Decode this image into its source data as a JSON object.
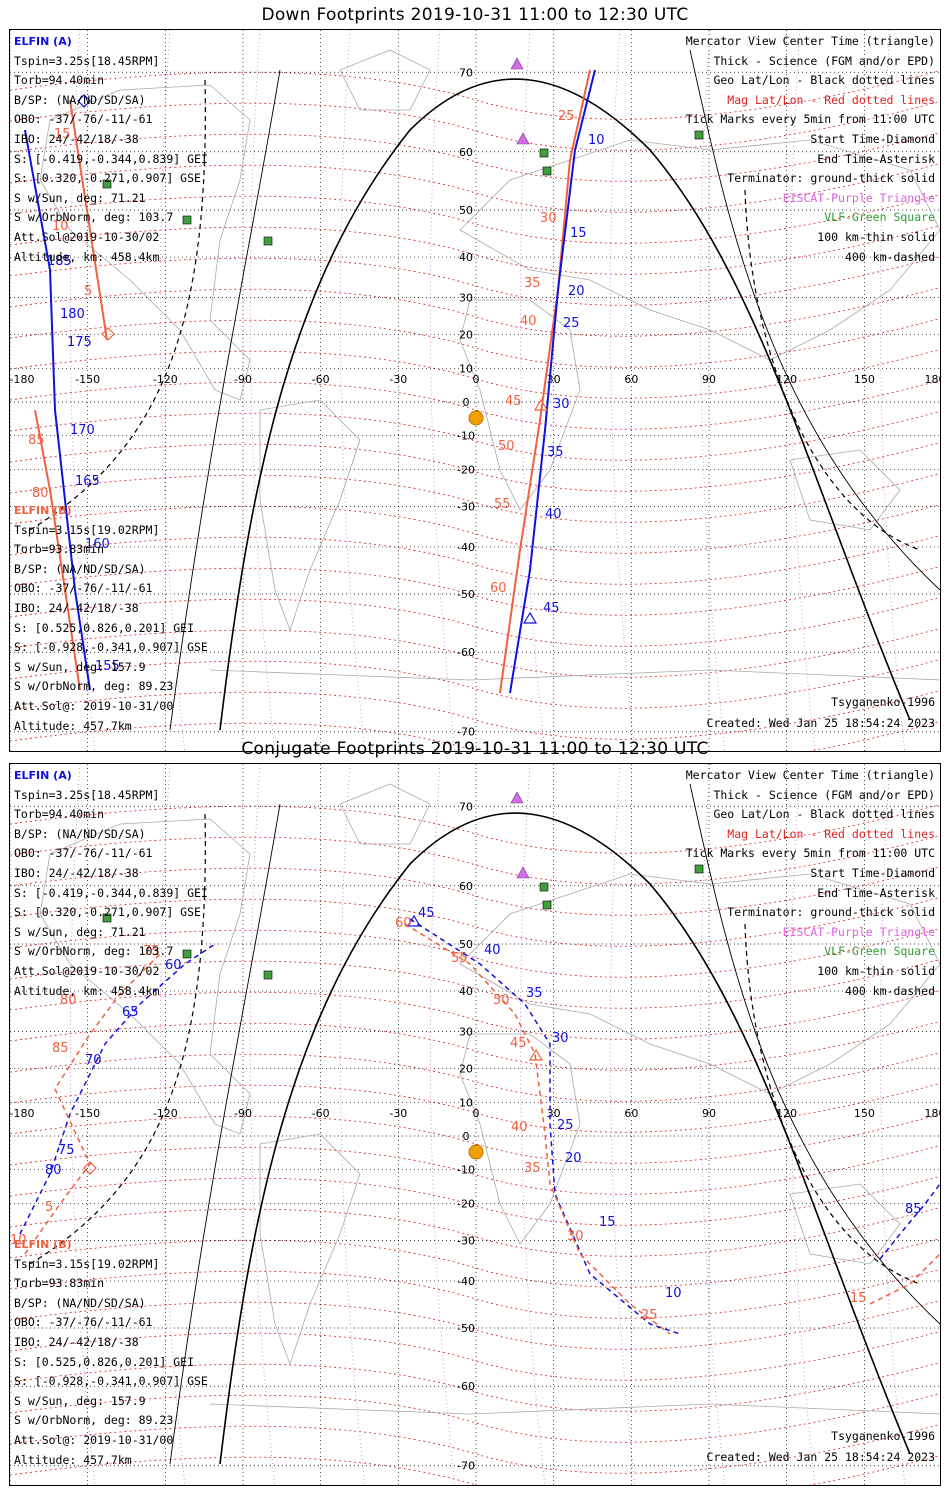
{
  "top": {
    "title": "Down Footprints 2019-10-31 11:00 to 12:30 UTC",
    "sat_a": {
      "header": "ELFIN (A)",
      "lines": [
        "Tspin=3.25s[18.45RPM]",
        "Torb=94.40min",
        "B/SP: (NA/ND/SD/SA)",
        "OBO: -37/-76/-11/-61",
        "IBO: 24/-42/18/-38",
        "S: [-0.419,-0.344,0.839] GEI",
        "S: [0.320,-0.271,0.907] GSE",
        "S w/Sun, deg: 71.21",
        "S w/OrbNorm, deg: 103.7",
        "Att.Sol@2019-10-30/02",
        "Altitude, km: 458.4km"
      ]
    },
    "sat_b": {
      "header": "ELFIN (B)",
      "lines": [
        "Tspin=3.15s[19.02RPM]",
        "Torb=93.83min",
        "B/SP: (NA/ND/SD/SA)",
        "OBO: -37/-76/-11/-61",
        "IBO: 24/-42/18/-38",
        "S: [0.525,0.826,0.201] GEI",
        "S: [-0.928,-0.341,0.907] GSE",
        "S w/Sun, deg: 157.9",
        "S w/OrbNorm, deg: 89.23",
        "Att.Sol@: 2019-10-31/00",
        "Altitude: 457.7km"
      ]
    },
    "model": "Tsyganenko-1996",
    "created": "Created: Wed Jan 25 18:54:24 2023",
    "lat_labels": [
      "70",
      "60",
      "50",
      "40",
      "30",
      "20",
      "10",
      "0",
      "-10",
      "-20",
      "-30",
      "-40",
      "-50",
      "-60",
      "-70"
    ],
    "lon_labels": [
      "-180",
      "-150",
      "-120",
      "-90",
      "-60",
      "-30",
      "0",
      "30",
      "60",
      "90",
      "120",
      "150",
      "180"
    ],
    "track_a_times": [
      "185",
      "180",
      "175",
      "170",
      "165",
      "160",
      "155",
      "10",
      "15",
      "20",
      "25",
      "30",
      "35",
      "40",
      "45"
    ],
    "track_b_times": [
      "15",
      "10",
      "5",
      "85",
      "80",
      "25",
      "30",
      "35",
      "40",
      "45",
      "50",
      "55",
      "60"
    ]
  },
  "bottom": {
    "title": "Conjugate Footprints 2019-10-31 11:00 to 12:30 UTC",
    "sat_a": {
      "header": "ELFIN (A)",
      "lines": [
        "Tspin=3.25s[18.45RPM]",
        "Torb=94.40min",
        "B/SP: (NA/ND/SD/SA)",
        "OBO: -37/-76/-11/-61",
        "IBO: 24/-42/18/-38",
        "S: [-0.419,-0.344,0.839] GEI",
        "S: [0.320,-0.271,0.907] GSE",
        "S w/Sun, deg: 71.21",
        "S w/OrbNorm, deg: 103.7",
        "Att.Sol@2019-10-30/02",
        "Altitude, km: 458.4km"
      ]
    },
    "sat_b": {
      "header": "ELFIN (B)",
      "lines": [
        "Tspin=3.15s[19.02RPM]",
        "Torb=93.83min",
        "B/SP: (NA/ND/SD/SA)",
        "OBO: -37/-76/-11/-61",
        "IBO: 24/-42/18/-38",
        "S: [0.525,0.826,0.201] GEI",
        "S: [-0.928,-0.341,0.907] GSE",
        "S w/Sun, deg: 157.9",
        "S w/OrbNorm, deg: 89.23",
        "Att.Sol@: 2019-10-31/00",
        "Altitude: 457.7km"
      ]
    },
    "model": "Tsyganenko-1996",
    "created": "Created: Wed Jan 25 18:54:24 2023",
    "lat_labels": [
      "70",
      "60",
      "50",
      "40",
      "30",
      "20",
      "10",
      "0",
      "-10",
      "-20",
      "-30",
      "-40",
      "-50",
      "-60",
      "-70"
    ],
    "lon_labels": [
      "-180",
      "-150",
      "-120",
      "-90",
      "-60",
      "-30",
      "0",
      "30",
      "60",
      "90",
      "120",
      "150",
      "180"
    ],
    "track_a_times": [
      "80",
      "75",
      "70",
      "65",
      "60",
      "45",
      "40",
      "35",
      "30",
      "25",
      "20",
      "15",
      "10",
      "85"
    ],
    "track_b_times": [
      "10",
      "5",
      "85",
      "80",
      "75",
      "60",
      "55",
      "50",
      "45",
      "40",
      "35",
      "30",
      "25",
      "15"
    ]
  },
  "legend": {
    "lines": [
      {
        "text": "Mercator View Center Time (triangle)",
        "color": "black"
      },
      {
        "text": "Thick - Science (FGM and/or EPD)",
        "color": "black"
      },
      {
        "text": "Geo Lat/Lon - Black dotted lines",
        "color": "black"
      },
      {
        "text": "Mag Lat/Lon - Red dotted lines",
        "color": "red"
      },
      {
        "text": "Tick Marks every 5min from 11:00 UTC",
        "color": "black"
      },
      {
        "text": "Start Time-Diamond",
        "color": "black"
      },
      {
        "text": "End Time-Asterisk",
        "color": "black"
      },
      {
        "text": "Terminator: ground-thick solid",
        "color": "black"
      },
      {
        "text": "EISCAT-Purple Triangle",
        "color": "purple"
      },
      {
        "text": "VLF-Green Square",
        "color": "green"
      },
      {
        "text": "100 km-thin solid",
        "color": "black"
      },
      {
        "text": "400 km-dashed",
        "color": "black"
      }
    ]
  },
  "colors": {
    "elfin_a": "#1010e0",
    "elfin_b": "#f06040",
    "mag_grid": "#e02020",
    "geo_grid": "#000000",
    "eiscat": "#d070e0",
    "vlf": "#40a040",
    "sun": "#f0a000"
  }
}
